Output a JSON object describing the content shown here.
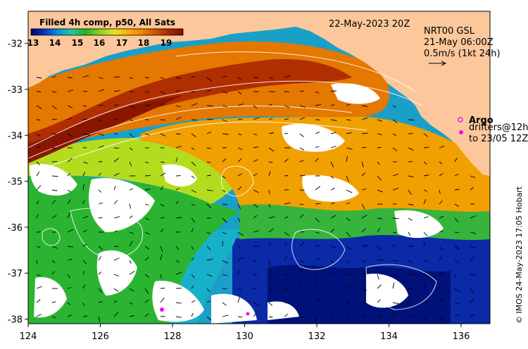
{
  "map": {
    "lon_ticks": [
      "124",
      "126",
      "128",
      "130",
      "132",
      "134",
      "136"
    ],
    "lat_ticks": [
      "-32",
      "-33",
      "-34",
      "-35",
      "-36",
      "-37",
      "-38"
    ],
    "lon_range": [
      124,
      136.8
    ],
    "lat_range": [
      -38.1,
      -31.3
    ]
  },
  "colorbar": {
    "title": "Filled 4h comp, p50, All Sats",
    "labels": [
      "13",
      "14",
      "15",
      "16",
      "17",
      "18",
      "19"
    ],
    "colors": [
      "#00007a",
      "#0038c8",
      "#0094e8",
      "#1ec8a0",
      "#22b41e",
      "#8ad21e",
      "#e6e61e",
      "#ffb000",
      "#f08200",
      "#d24e00",
      "#aa2800",
      "#7a1000"
    ]
  },
  "info": {
    "date": "22-May-2023 20Z",
    "product": "NRT00 GSL",
    "obs_time": "21-May 06:00Z",
    "scale": "0.5m/s (1kt 24h)",
    "argo": "Argo",
    "drifters_line1": "drifters@12h",
    "drifters_line2": "to 23/05 12Z"
  },
  "credit": "© IMOS 24-May-2023 17:05 Hobart",
  "colors": {
    "land": "#fcc89b",
    "argo": "#e01ee0",
    "drifter": "#ff00ff"
  },
  "icons": {
    "argo_marker": "circle-marker-icon",
    "scale_arrow": "arrow-right-icon"
  }
}
